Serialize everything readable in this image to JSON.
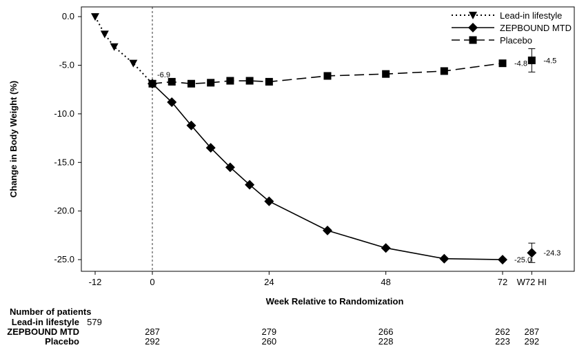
{
  "chart_data": {
    "type": "line",
    "ylabel": "Change in Body Weight (%)",
    "xlabel": "Week Relative to Randomization",
    "x_tick_labels": [
      "-12",
      "0",
      "24",
      "48",
      "72",
      "W72 HI"
    ],
    "y_tick_labels": [
      "0.0",
      "-5.0",
      "-10.0",
      "-15.0",
      "-20.0",
      "-25.0"
    ],
    "ylim": [
      -26.2,
      1.0
    ],
    "xlim": [
      -14,
      82
    ],
    "randomization_line_x": 0,
    "series": [
      {
        "name": "Lead-in lifestyle",
        "line_style": "dotted",
        "marker": "triangle-down",
        "x": [
          -12,
          -10,
          -8,
          -4,
          0
        ],
        "y": [
          0.0,
          -1.8,
          -3.1,
          -4.8,
          -6.9
        ]
      },
      {
        "name": "ZEPBOUND MTD",
        "line_style": "solid",
        "marker": "diamond",
        "x": [
          0,
          4,
          8,
          12,
          16,
          20,
          24,
          36,
          48,
          60,
          72
        ],
        "y": [
          -6.9,
          -8.8,
          -11.2,
          -13.5,
          -15.5,
          -17.3,
          -19.0,
          -22.0,
          -23.8,
          -24.9,
          -25.0
        ]
      },
      {
        "name": "Placebo",
        "line_style": "dashed",
        "marker": "square",
        "x": [
          0,
          4,
          8,
          12,
          16,
          20,
          24,
          36,
          48,
          60,
          72
        ],
        "y": [
          -6.9,
          -6.7,
          -6.9,
          -6.8,
          -6.6,
          -6.6,
          -6.7,
          -6.1,
          -5.9,
          -5.6,
          -4.8
        ]
      }
    ],
    "hi_estimates": [
      {
        "series": "ZEPBOUND MTD",
        "x": 78,
        "y": -24.3,
        "ci": [
          -23.3,
          -25.3
        ]
      },
      {
        "series": "Placebo",
        "x": 78,
        "y": -4.5,
        "ci": [
          -3.3,
          -5.7
        ]
      }
    ],
    "data_labels": [
      {
        "text": "-6.9",
        "x": 0,
        "y": -6.9
      },
      {
        "text": "-4.8",
        "x": 72,
        "y": -4.8
      },
      {
        "text": "-4.5",
        "x": 78,
        "y": -4.5
      },
      {
        "text": "-25.0",
        "x": 72,
        "y": -25.0
      },
      {
        "text": "-24.3",
        "x": 78,
        "y": -24.3
      }
    ],
    "legend_position": "top-right"
  },
  "patients_table": {
    "title": "Number of patients",
    "rows": [
      {
        "label": "Lead-in lifestyle",
        "values": [
          {
            "x": -12,
            "text": "579"
          }
        ]
      },
      {
        "label": "ZEPBOUND MTD",
        "values": [
          {
            "x": 0,
            "text": "287"
          },
          {
            "x": 24,
            "text": "279"
          },
          {
            "x": 48,
            "text": "266"
          },
          {
            "x": 72,
            "text": "262"
          },
          {
            "x": 78,
            "text": "287"
          }
        ]
      },
      {
        "label": "Placebo",
        "values": [
          {
            "x": 0,
            "text": "292"
          },
          {
            "x": 24,
            "text": "260"
          },
          {
            "x": 48,
            "text": "228"
          },
          {
            "x": 72,
            "text": "223"
          },
          {
            "x": 78,
            "text": "292"
          }
        ]
      }
    ]
  }
}
